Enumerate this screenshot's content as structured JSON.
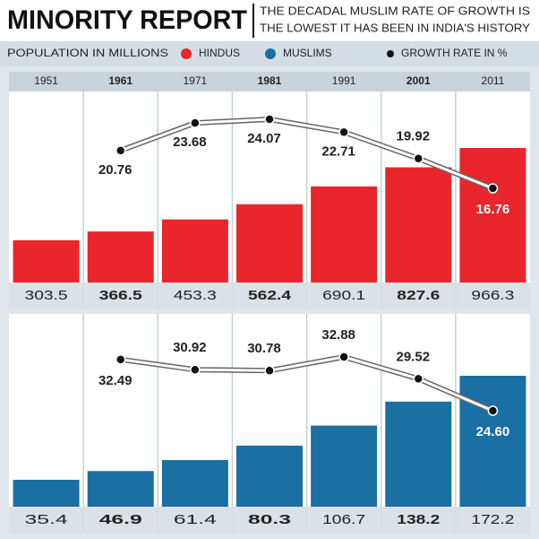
{
  "chart_data": {
    "type": "bar-line-panels",
    "title": "MINORITY REPORT",
    "subtitle_lines": [
      "THE DECADAL MUSLIM RATE OF GROWTH IS",
      "THE LOWEST IT HAS BEEN IN INDIA'S HISTORY"
    ],
    "legend_title": "POPULATION IN MILLIONS",
    "categories": [
      "1951",
      "1961",
      "1971",
      "1981",
      "1991",
      "2001",
      "2011"
    ],
    "panels": [
      {
        "series": [
          {
            "name": "HINDUS",
            "color": "#e8262b",
            "values": [
              303.5,
              366.5,
              453.3,
              562.4,
              690.1,
              827.6,
              966.3
            ]
          },
          {
            "name": "GROWTH RATE IN %",
            "color": "#111111",
            "values": [
              null,
              20.76,
              23.68,
              24.07,
              22.71,
              19.92,
              16.76
            ]
          }
        ]
      },
      {
        "series": [
          {
            "name": "MUSLIMS",
            "color": "#1a6fa3",
            "values": [
              35.4,
              46.9,
              61.4,
              80.3,
              106.7,
              138.2,
              172.2
            ]
          },
          {
            "name": "GROWTH RATE IN %",
            "color": "#111111",
            "values": [
              null,
              32.49,
              30.92,
              30.78,
              32.88,
              29.52,
              24.6
            ],
            "value_labels": [
              null,
              "32.49",
              "30.92",
              "30.78",
              "32.88",
              "29.52",
              "24.60"
            ]
          }
        ]
      }
    ]
  }
}
